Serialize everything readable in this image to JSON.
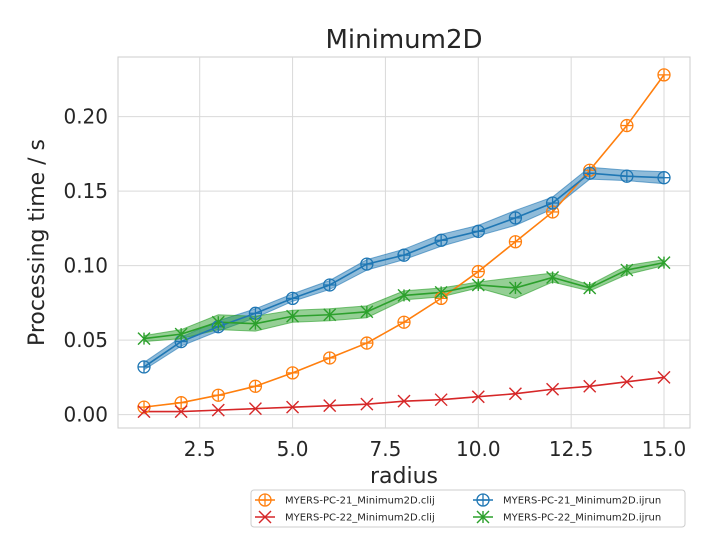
{
  "chart_data": {
    "type": "line",
    "title": "Minimum2D",
    "xlabel": "radius",
    "ylabel": "Processing time / s",
    "xlim": [
      0.3,
      15.7
    ],
    "ylim": [
      -0.009,
      0.24
    ],
    "xticks": [
      2.5,
      5.0,
      7.5,
      10.0,
      12.5,
      15.0
    ],
    "xtick_labels": [
      "2.5",
      "5.0",
      "7.5",
      "10.0",
      "12.5",
      "15.0"
    ],
    "yticks": [
      0.0,
      0.05,
      0.1,
      0.15,
      0.2
    ],
    "ytick_labels": [
      "0.00",
      "0.05",
      "0.10",
      "0.15",
      "0.20"
    ],
    "grid": true,
    "legend_position": "bottom-right, below plot",
    "x": [
      1,
      2,
      3,
      4,
      5,
      6,
      7,
      8,
      9,
      10,
      11,
      12,
      13,
      14,
      15
    ],
    "series": [
      {
        "name": "MYERS-PC-21_Minimum2D.clij",
        "color": "#ff7f0e",
        "marker": "circle-plus",
        "values": [
          0.005,
          0.008,
          0.013,
          0.019,
          0.028,
          0.038,
          0.048,
          0.062,
          0.078,
          0.096,
          0.116,
          0.136,
          0.164,
          0.194,
          0.228
        ],
        "lower": [
          0.005,
          0.008,
          0.013,
          0.019,
          0.028,
          0.038,
          0.048,
          0.062,
          0.078,
          0.096,
          0.116,
          0.136,
          0.164,
          0.194,
          0.228
        ],
        "upper": [
          0.005,
          0.008,
          0.013,
          0.019,
          0.028,
          0.038,
          0.048,
          0.062,
          0.078,
          0.096,
          0.116,
          0.136,
          0.164,
          0.194,
          0.228
        ]
      },
      {
        "name": "MYERS-PC-21_Minimum2D.ijrun",
        "color": "#1f77b4",
        "marker": "circle-plus",
        "values": [
          0.032,
          0.049,
          0.059,
          0.068,
          0.078,
          0.087,
          0.101,
          0.107,
          0.117,
          0.123,
          0.132,
          0.142,
          0.162,
          0.16,
          0.159
        ],
        "lower": [
          0.03,
          0.046,
          0.056,
          0.065,
          0.076,
          0.084,
          0.097,
          0.104,
          0.113,
          0.12,
          0.127,
          0.138,
          0.158,
          0.157,
          0.155
        ],
        "upper": [
          0.035,
          0.052,
          0.063,
          0.071,
          0.081,
          0.09,
          0.104,
          0.111,
          0.121,
          0.127,
          0.137,
          0.146,
          0.166,
          0.164,
          0.163
        ]
      },
      {
        "name": "MYERS-PC-22_Minimum2D.clij",
        "color": "#d62728",
        "marker": "x",
        "values": [
          0.002,
          0.002,
          0.003,
          0.004,
          0.005,
          0.006,
          0.007,
          0.009,
          0.01,
          0.012,
          0.014,
          0.017,
          0.019,
          0.022,
          0.025
        ],
        "lower": [
          0.002,
          0.002,
          0.003,
          0.004,
          0.005,
          0.006,
          0.007,
          0.009,
          0.01,
          0.012,
          0.014,
          0.017,
          0.019,
          0.022,
          0.025
        ],
        "upper": [
          0.002,
          0.002,
          0.003,
          0.004,
          0.005,
          0.006,
          0.007,
          0.009,
          0.01,
          0.012,
          0.014,
          0.017,
          0.019,
          0.022,
          0.025
        ]
      },
      {
        "name": "MYERS-PC-22_Minimum2D.ijrun",
        "color": "#2ca02c",
        "marker": "star",
        "values": [
          0.051,
          0.054,
          0.062,
          0.061,
          0.066,
          0.067,
          0.069,
          0.08,
          0.082,
          0.087,
          0.085,
          0.092,
          0.085,
          0.097,
          0.102
        ],
        "lower": [
          0.049,
          0.051,
          0.057,
          0.056,
          0.062,
          0.063,
          0.065,
          0.077,
          0.079,
          0.085,
          0.078,
          0.089,
          0.083,
          0.094,
          0.1
        ],
        "upper": [
          0.053,
          0.057,
          0.067,
          0.066,
          0.07,
          0.071,
          0.073,
          0.083,
          0.085,
          0.089,
          0.092,
          0.095,
          0.087,
          0.1,
          0.104
        ]
      }
    ],
    "legend_order": [
      0,
      2,
      1,
      3
    ]
  }
}
